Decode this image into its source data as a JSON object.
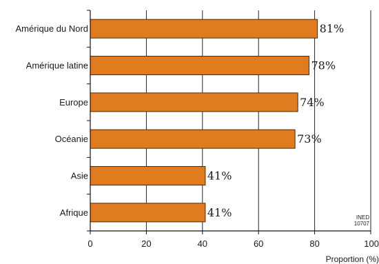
{
  "chart_data": {
    "type": "bar",
    "orientation": "horizontal",
    "title": "",
    "xlabel": "Proportion (%)",
    "ylabel": "",
    "xlim": [
      0,
      100
    ],
    "xticks": [
      0,
      20,
      40,
      60,
      80,
      100
    ],
    "grid": "vertical",
    "bar_color": "#e07b1f",
    "bar_edge_color": "#4a2a0a",
    "categories": [
      "Amérique du Nord",
      "Amérique latine",
      "Europe",
      "Océanie",
      "Asie",
      "Afrique"
    ],
    "values": [
      81,
      78,
      74,
      73,
      41,
      41
    ],
    "value_labels": [
      "81%",
      "78%",
      "74%",
      "73%",
      "41%",
      "41%"
    ]
  },
  "source_note": {
    "line1": "INED",
    "line2": "10707"
  }
}
